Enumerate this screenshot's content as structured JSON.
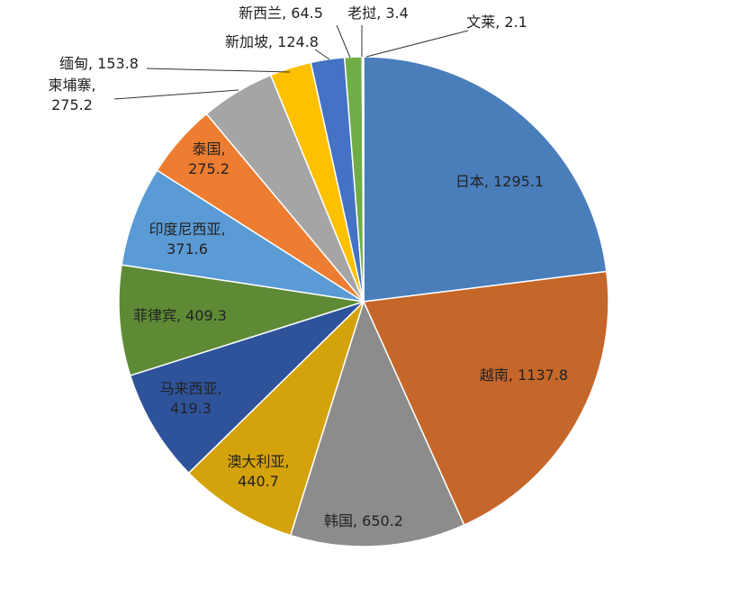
{
  "chart_data": {
    "type": "pie",
    "title": "",
    "start_angle_deg": 0,
    "direction": "clockwise",
    "slice_border": "#ffffff",
    "slices": [
      {
        "name": "日本",
        "value": 1295.1,
        "label": "日本, 1295.1",
        "color": "#4A7EBB"
      },
      {
        "name": "越南",
        "value": 1137.8,
        "label": "越南, 1137.8",
        "color": "#C5662A"
      },
      {
        "name": "韩国",
        "value": 650.2,
        "label": "韩国, 650.2",
        "color": "#8C8C8C"
      },
      {
        "name": "澳大利亚",
        "value": 440.7,
        "label": "澳大利亚, 440.7",
        "color": "#D4A20A"
      },
      {
        "name": "马来西亚",
        "value": 419.3,
        "label": "马来西亚, 419.3",
        "color": "#2E539B"
      },
      {
        "name": "菲律宾",
        "value": 409.3,
        "label": "菲律宾, 409.3",
        "color": "#5E8A36"
      },
      {
        "name": "印度尼西亚",
        "value": 371.6,
        "label": "印度尼西亚, 371.6",
        "color": "#5B9BD5"
      },
      {
        "name": "泰国",
        "value": 275.2,
        "label": "泰国, 275.2",
        "color": "#ED7D31"
      },
      {
        "name": "柬埔寨",
        "value": 275.2,
        "label": "柬埔寨, 275.2",
        "color": "#A5A5A5"
      },
      {
        "name": "缅甸",
        "value": 153.8,
        "label": "缅甸, 153.8",
        "color": "#FFC000"
      },
      {
        "name": "新加坡",
        "value": 124.8,
        "label": "新加坡, 124.8",
        "color": "#4472C4"
      },
      {
        "name": "新西兰",
        "value": 64.5,
        "label": "新西兰, 64.5",
        "color": "#70AD47"
      },
      {
        "name": "老挝",
        "value": 3.4,
        "label": "老挝, 3.4",
        "color": "#264478"
      },
      {
        "name": "文莱",
        "value": 2.1,
        "label": "文莱, 2.1",
        "color": "#9E480E"
      }
    ]
  }
}
